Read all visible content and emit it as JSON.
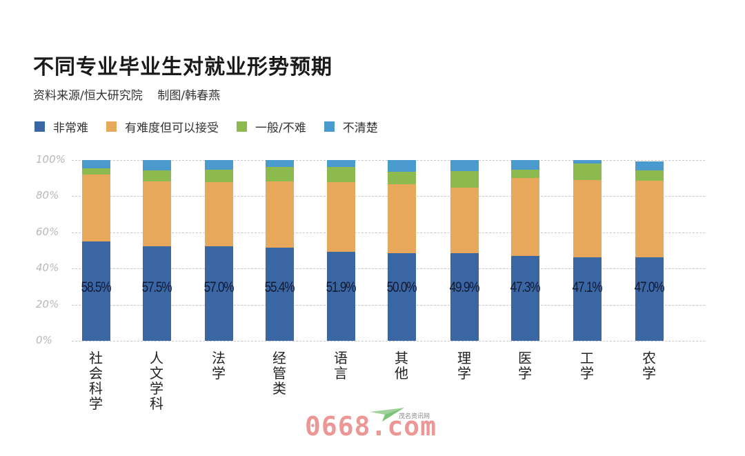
{
  "header": {
    "title": "不同专业毕业生对就业形势预期",
    "subtitle": "资料来源/恒大研究院    制图/韩春燕"
  },
  "legend": [
    {
      "label": "非常难",
      "color": "#3a66a3"
    },
    {
      "label": "有难度但可以接受",
      "color": "#e8a85b"
    },
    {
      "label": "一般/不难",
      "color": "#8dba4e"
    },
    {
      "label": "不清楚",
      "color": "#4a9acd"
    }
  ],
  "yticks": [
    "100%",
    "80%",
    "60%",
    "40%",
    "20%",
    "0%"
  ],
  "watermark": {
    "text": "0668.com",
    "sub": "茂名资讯网"
  },
  "chart_data": {
    "type": "bar",
    "stacked": true,
    "title": "不同专业毕业生对就业形势预期",
    "subtitle": "资料来源/恒大研究院 制图/韩春燕",
    "xlabel": "",
    "ylabel": "",
    "ylim": [
      0,
      100
    ],
    "yticks": [
      "0%",
      "20%",
      "40%",
      "60%",
      "80%",
      "100%"
    ],
    "grid": true,
    "legend_position": "top-left",
    "categories": [
      "社会科学",
      "人文学科",
      "法学",
      "经管类",
      "语言",
      "其他",
      "理学",
      "医学",
      "工学",
      "农学"
    ],
    "data_labels": [
      "58.5%",
      "57.5%",
      "57.0%",
      "55.4%",
      "51.9%",
      "50.0%",
      "49.9%",
      "47.3%",
      "47.1%",
      "47.0%"
    ],
    "series": [
      {
        "name": "非常难",
        "color": "#3a66a3",
        "values": [
          55.0,
          52.3,
          52.3,
          51.5,
          49.2,
          48.5,
          48.5,
          46.9,
          46.2,
          46.2
        ]
      },
      {
        "name": "有难度但可以接受",
        "color": "#e8a85b",
        "values": [
          37.0,
          35.9,
          35.5,
          36.7,
          38.6,
          38.1,
          36.2,
          43.2,
          42.7,
          42.3
        ]
      },
      {
        "name": "一般/不难",
        "color": "#8dba4e",
        "values": [
          3.4,
          6.1,
          6.9,
          8.0,
          8.4,
          6.9,
          9.2,
          4.6,
          9.2,
          5.8
        ]
      },
      {
        "name": "不清楚",
        "color": "#4a9acd",
        "values": [
          4.6,
          5.7,
          5.3,
          3.8,
          3.8,
          6.5,
          6.1,
          5.3,
          1.9,
          4.9
        ]
      }
    ]
  }
}
